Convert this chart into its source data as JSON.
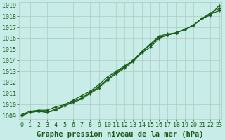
{
  "xlabel": "Graphe pression niveau de la mer (hPa)",
  "bg_color": "#c8ede8",
  "grid_color": "#b0c8c0",
  "line_color": "#1a5c1a",
  "x_ticks": [
    0,
    1,
    2,
    3,
    4,
    5,
    6,
    7,
    8,
    9,
    10,
    11,
    12,
    13,
    14,
    15,
    16,
    17,
    18,
    19,
    20,
    21,
    22,
    23
  ],
  "y_ticks": [
    1009,
    1010,
    1011,
    1012,
    1013,
    1014,
    1015,
    1016,
    1017,
    1018,
    1019
  ],
  "ylim": [
    1008.7,
    1019.3
  ],
  "xlim": [
    -0.3,
    23.3
  ],
  "line1_x": [
    0,
    1,
    2,
    3,
    4,
    5,
    6,
    7,
    8,
    9,
    10,
    11,
    12,
    13,
    14,
    15,
    16,
    17,
    18,
    19,
    20,
    21,
    22,
    23
  ],
  "line1_y": [
    1009.1,
    1009.4,
    1009.5,
    1009.5,
    1009.8,
    1010.0,
    1010.4,
    1010.8,
    1011.2,
    1011.8,
    1012.5,
    1013.0,
    1013.5,
    1014.0,
    1014.8,
    1015.5,
    1016.2,
    1016.4,
    1016.5,
    1016.8,
    1017.2,
    1017.8,
    1018.2,
    1018.5
  ],
  "line2_x": [
    0,
    1,
    2,
    3,
    4,
    5,
    6,
    7,
    8,
    9,
    10,
    11,
    12,
    13,
    14,
    15,
    16,
    17,
    18,
    19,
    20,
    21,
    22,
    23
  ],
  "line2_y": [
    1009.0,
    1009.3,
    1009.4,
    1009.3,
    1009.5,
    1009.9,
    1010.2,
    1010.5,
    1011.0,
    1011.5,
    1012.2,
    1012.8,
    1013.3,
    1013.9,
    1014.7,
    1015.2,
    1016.0,
    1016.3,
    1016.5,
    1016.8,
    1017.2,
    1017.8,
    1018.3,
    1018.7
  ],
  "line3_x": [
    0,
    1,
    2,
    3,
    4,
    5,
    6,
    7,
    8,
    9,
    10,
    11,
    12,
    13,
    14,
    15,
    16,
    17,
    18,
    19,
    20,
    21,
    22,
    23
  ],
  "line3_y": [
    1009.0,
    1009.3,
    1009.4,
    1009.3,
    1009.6,
    1009.9,
    1010.3,
    1010.6,
    1011.1,
    1011.6,
    1012.3,
    1012.9,
    1013.4,
    1014.0,
    1014.8,
    1015.4,
    1016.1,
    1016.3,
    1016.5,
    1016.8,
    1017.2,
    1017.8,
    1018.1,
    1019.0
  ],
  "xlabel_fontsize": 7.5,
  "tick_fontsize": 6.0,
  "linewidth": 0.9,
  "markersize": 3.0,
  "markeredgewidth": 1.0
}
